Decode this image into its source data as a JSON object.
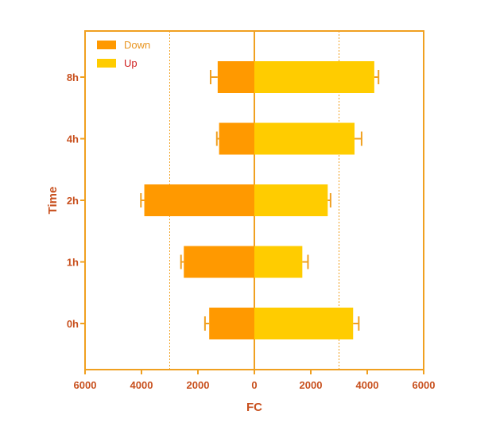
{
  "chart_data": {
    "type": "bar",
    "orientation": "horizontal-diverging",
    "title": "",
    "xlabel": "FC",
    "ylabel": "Time",
    "categories": [
      "0h",
      "1h",
      "2h",
      "4h",
      "8h"
    ],
    "series": [
      {
        "name": "Down",
        "color": "#ff9900",
        "values": [
          1600,
          2500,
          3900,
          1250,
          1300
        ],
        "errors": [
          150,
          100,
          120,
          80,
          250
        ]
      },
      {
        "name": "Up",
        "color": "#ffcc00",
        "values": [
          3500,
          1700,
          2600,
          3550,
          4250
        ],
        "errors": [
          200,
          200,
          100,
          250,
          150
        ]
      }
    ],
    "xlim": [
      -6000,
      6000
    ],
    "x_ticks": [
      -6000,
      -4000,
      -2000,
      0,
      2000,
      4000,
      6000
    ],
    "x_tick_labels": [
      "6000",
      "4000",
      "2000",
      "0",
      "2000",
      "4000",
      "6000"
    ],
    "reference_lines": [
      -3000,
      3000
    ],
    "legend_position": "top-left",
    "grid": false,
    "axis_color": "#f0a020",
    "label_color": "#c8501e"
  }
}
